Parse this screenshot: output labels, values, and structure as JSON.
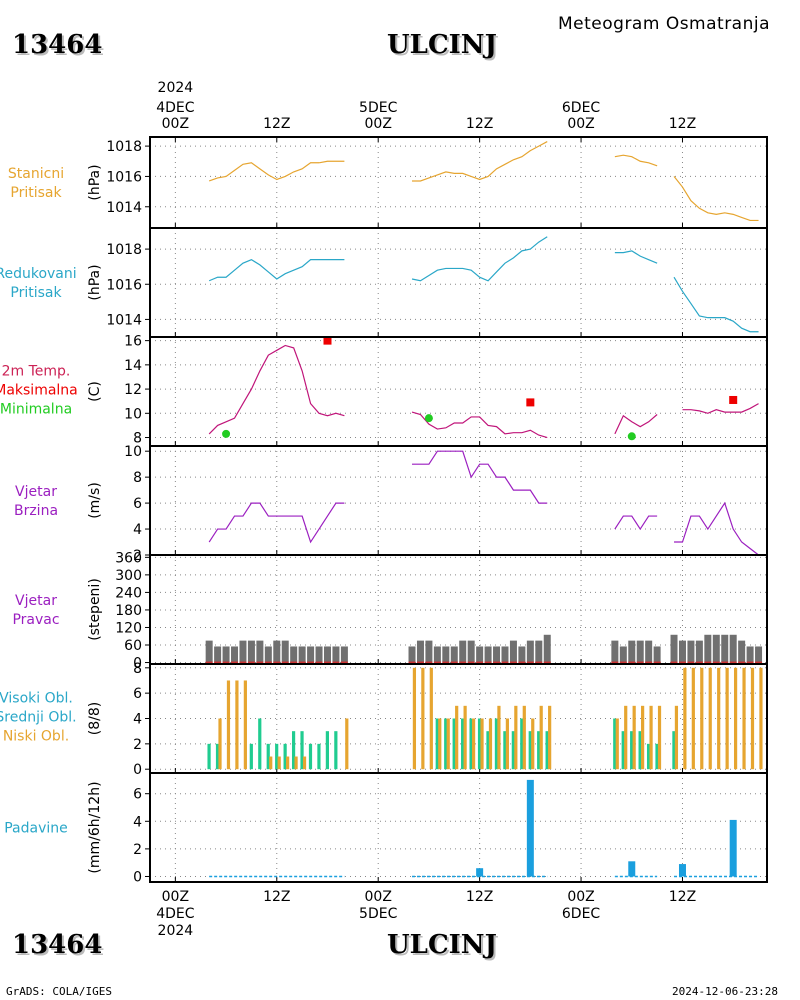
{
  "header": {
    "station_id": "13464",
    "station_name": "ULCINJ",
    "product": "Meteogram Osmatranja"
  },
  "footer": {
    "credit": "GrADS: COLA/IGES",
    "timestamp": "2024-12-06-23:28"
  },
  "time_axis": {
    "top_year": "2024",
    "ticks": [
      {
        "t": 0,
        "lines": [
          "4DEC",
          "00Z"
        ],
        "date": "4DEC"
      },
      {
        "t": 12,
        "lines": [
          "12Z"
        ]
      },
      {
        "t": 24,
        "lines": [
          "5DEC",
          "00Z"
        ],
        "date": "5DEC"
      },
      {
        "t": 36,
        "lines": [
          "12Z"
        ]
      },
      {
        "t": 48,
        "lines": [
          "6DEC",
          "00Z"
        ],
        "date": "6DEC"
      },
      {
        "t": 60,
        "lines": [
          "12Z"
        ]
      }
    ],
    "bottom": [
      {
        "t": 0,
        "lines": [
          "00Z",
          "4DEC",
          "2024"
        ]
      },
      {
        "t": 12,
        "lines": [
          "12Z"
        ]
      },
      {
        "t": 24,
        "lines": [
          "00Z",
          "5DEC"
        ]
      },
      {
        "t": 36,
        "lines": [
          "12Z"
        ]
      },
      {
        "t": 48,
        "lines": [
          "00Z",
          "6DEC"
        ]
      },
      {
        "t": 60,
        "lines": [
          "12Z"
        ]
      }
    ],
    "xlim": [
      -3,
      70
    ]
  },
  "chart_data": [
    {
      "id": "station_pressure",
      "type": "line",
      "panel_labels": [
        "Stanicni",
        "Pritisak"
      ],
      "label_color": "#e6a530",
      "ylabel": "(hPa)",
      "ylim": [
        1012.6,
        1018.6
      ],
      "yticks": [
        1014,
        1016,
        1018
      ],
      "series": [
        {
          "color": "#e6a530",
          "x": [
            4,
            5,
            6,
            7,
            8,
            9,
            10,
            11,
            12,
            13,
            14,
            15,
            16,
            17
          ],
          "y": [
            1015.7,
            1015.9,
            1016.0,
            1016.4,
            1016.8,
            1016.9,
            1016.5,
            1016.1,
            1015.8,
            1016.0,
            1016.3,
            1016.5,
            1016.9,
            1016.9
          ]
        },
        {
          "color": "#e6a530",
          "x": [
            17,
            18,
            19,
            20
          ],
          "y": [
            1016.9,
            1017.0,
            1017.0,
            1017.0
          ]
        },
        {
          "color": "#e6a530",
          "x": [
            28,
            29,
            30,
            31,
            32,
            33,
            34,
            35,
            36,
            37,
            38,
            39,
            40,
            41,
            42,
            43,
            44
          ],
          "y": [
            1015.7,
            1015.7,
            1015.9,
            1016.1,
            1016.3,
            1016.2,
            1016.2,
            1016.0,
            1015.8,
            1016.0,
            1016.5,
            1016.8,
            1017.1,
            1017.3,
            1017.7,
            1018.0,
            1018.3
          ]
        },
        {
          "color": "#e6a530",
          "x": [
            52,
            53,
            54,
            55,
            56,
            57
          ],
          "y": [
            1017.3,
            1017.4,
            1017.3,
            1017.0,
            1016.9,
            1016.7
          ]
        },
        {
          "color": "#e6a530",
          "x": [
            59,
            60,
            61,
            62,
            63,
            64,
            65,
            66,
            67,
            68,
            69
          ],
          "y": [
            1016.0,
            1015.3,
            1014.4,
            1013.9,
            1013.6,
            1013.5,
            1013.6,
            1013.5,
            1013.3,
            1013.1,
            1013.1
          ]
        }
      ]
    },
    {
      "id": "reduced_pressure",
      "type": "line",
      "panel_labels": [
        "Redukovani",
        "Pritisak"
      ],
      "label_color": "#2aa7c8",
      "ylabel": "(hPa)",
      "ylim": [
        1013.0,
        1019.2
      ],
      "yticks": [
        1014,
        1016,
        1018
      ],
      "series": [
        {
          "color": "#2aa7c8",
          "x": [
            4,
            5,
            6,
            7,
            8,
            9,
            10,
            11,
            12,
            13,
            14,
            15,
            16,
            17,
            18,
            19,
            20
          ],
          "y": [
            1016.2,
            1016.4,
            1016.4,
            1016.8,
            1017.2,
            1017.4,
            1017.1,
            1016.7,
            1016.3,
            1016.6,
            1016.8,
            1017.0,
            1017.4,
            1017.4,
            1017.4,
            1017.4,
            1017.4
          ]
        },
        {
          "color": "#2aa7c8",
          "x": [
            28,
            29,
            30,
            31,
            32,
            33,
            34,
            35,
            36,
            37,
            38,
            39,
            40,
            41,
            42,
            43,
            44
          ],
          "y": [
            1016.3,
            1016.2,
            1016.5,
            1016.8,
            1016.9,
            1016.9,
            1016.9,
            1016.8,
            1016.4,
            1016.2,
            1016.7,
            1017.2,
            1017.5,
            1017.9,
            1018.0,
            1018.4,
            1018.7
          ]
        },
        {
          "color": "#2aa7c8",
          "x": [
            52,
            53,
            54,
            55,
            56,
            57
          ],
          "y": [
            1017.8,
            1017.8,
            1017.9,
            1017.6,
            1017.4,
            1017.2
          ]
        },
        {
          "color": "#2aa7c8",
          "x": [
            59,
            60,
            61,
            62,
            63,
            64,
            65,
            66,
            67,
            68,
            69
          ],
          "y": [
            1016.4,
            1015.6,
            1014.9,
            1014.2,
            1014.1,
            1014.1,
            1014.1,
            1013.9,
            1013.5,
            1013.3,
            1013.3
          ]
        }
      ]
    },
    {
      "id": "temperature",
      "type": "line",
      "panel_labels": [
        "2m Temp.",
        "Maksimalna",
        "Minimalna"
      ],
      "panel_label_colors": [
        "#cc2255",
        "#ee0000",
        "#22cc22"
      ],
      "ylabel": "(C)",
      "ylim": [
        7.3,
        16.3
      ],
      "yticks": [
        8,
        10,
        12,
        14,
        16
      ],
      "series": [
        {
          "name": "2m Temp.",
          "color": "#c0157a",
          "x": [
            4,
            5,
            6,
            7,
            8,
            9,
            10,
            11,
            12,
            13,
            14,
            15,
            16,
            17,
            18,
            19,
            20
          ],
          "y": [
            8.3,
            9.0,
            9.3,
            9.6,
            10.8,
            12.0,
            13.5,
            14.8,
            15.2,
            15.6,
            15.4,
            13.5,
            10.8,
            10.0,
            9.8,
            10.0,
            9.8
          ]
        },
        {
          "name": "2m Temp.",
          "color": "#c0157a",
          "x": [
            28,
            29,
            30,
            31,
            32,
            33,
            34,
            35,
            36,
            37,
            38,
            39,
            40,
            41,
            42,
            43,
            44
          ],
          "y": [
            10.1,
            9.9,
            9.1,
            8.7,
            8.8,
            9.2,
            9.2,
            9.7,
            9.7,
            9.0,
            8.9,
            8.3,
            8.4,
            8.4,
            8.6,
            8.2,
            8.0
          ]
        },
        {
          "name": "2m Temp.",
          "color": "#c0157a",
          "x": [
            52,
            53,
            54,
            55,
            56,
            57
          ],
          "y": [
            8.3,
            9.8,
            9.3,
            8.9,
            9.3,
            9.9
          ]
        },
        {
          "name": "2m Temp.",
          "color": "#c0157a",
          "x": [
            60,
            61,
            62,
            63,
            64,
            65,
            66,
            67,
            68,
            69
          ],
          "y": [
            10.3,
            10.3,
            10.2,
            10.0,
            10.3,
            10.1,
            10.1,
            10.1,
            10.4,
            10.8
          ]
        }
      ],
      "max_points": {
        "color": "#ee0000",
        "x": [
          18,
          42,
          66
        ],
        "y": [
          16.0,
          10.9,
          11.1
        ]
      },
      "min_points": {
        "color": "#22cc22",
        "x": [
          6,
          30,
          54
        ],
        "y": [
          8.3,
          9.6,
          8.1
        ]
      }
    },
    {
      "id": "wind_speed",
      "type": "line",
      "panel_labels": [
        "Vjetar",
        "Brzina"
      ],
      "label_color": "#9b1fc0",
      "ylabel": "(m/s)",
      "ylim": [
        2,
        10.4
      ],
      "yticks": [
        2,
        4,
        6,
        8,
        10
      ],
      "series": [
        {
          "color": "#9b1fc0",
          "x": [
            4,
            5,
            6,
            7,
            8,
            9,
            10,
            11,
            12,
            13,
            14,
            15,
            16,
            17,
            18,
            19,
            20
          ],
          "y": [
            3,
            4,
            4,
            5,
            5,
            6,
            6,
            5,
            5,
            5,
            5,
            5,
            3,
            4,
            5,
            6,
            6
          ]
        },
        {
          "color": "#9b1fc0",
          "x": [
            28,
            29,
            30,
            31,
            32,
            33,
            34,
            35,
            36,
            37,
            38,
            39,
            40,
            41,
            42,
            43,
            44
          ],
          "y": [
            9,
            9,
            9,
            10,
            10,
            10,
            10,
            8,
            9,
            9,
            8,
            8,
            7,
            7,
            7,
            6,
            6
          ]
        },
        {
          "color": "#9b1fc0",
          "x": [
            52,
            53,
            54,
            55,
            56,
            57
          ],
          "y": [
            4,
            5,
            5,
            4,
            5,
            5
          ]
        },
        {
          "color": "#9b1fc0",
          "x": [
            59,
            60,
            61,
            62,
            63,
            64,
            65,
            66,
            67,
            68,
            69
          ],
          "y": [
            3,
            3,
            5,
            5,
            4,
            5,
            6,
            4,
            3,
            2.5,
            2
          ]
        }
      ]
    },
    {
      "id": "wind_direction",
      "type": "bar",
      "panel_labels": [
        "Vjetar",
        "Pravac"
      ],
      "label_color": "#9b1fc0",
      "ylabel": "(stepeni)",
      "ylim": [
        -5,
        368
      ],
      "yticks": [
        0,
        60,
        120,
        180,
        240,
        300,
        360
      ],
      "bar_color": "#707070",
      "baseline_color": "#cc3333",
      "x": [
        4,
        5,
        6,
        7,
        8,
        9,
        10,
        11,
        12,
        13,
        14,
        15,
        16,
        17,
        18,
        19,
        20,
        28,
        29,
        30,
        31,
        32,
        33,
        34,
        35,
        36,
        37,
        38,
        39,
        40,
        41,
        42,
        43,
        44,
        52,
        53,
        54,
        55,
        56,
        57,
        59,
        60,
        61,
        62,
        63,
        64,
        65,
        66,
        67,
        68,
        69
      ],
      "values": [
        75,
        55,
        55,
        55,
        75,
        75,
        75,
        55,
        75,
        75,
        55,
        55,
        55,
        55,
        55,
        55,
        55,
        55,
        75,
        75,
        55,
        55,
        55,
        75,
        75,
        55,
        55,
        55,
        55,
        75,
        55,
        75,
        75,
        95,
        75,
        55,
        75,
        75,
        75,
        55,
        95,
        75,
        75,
        75,
        95,
        95,
        95,
        95,
        75,
        55,
        55
      ]
    },
    {
      "id": "cloud_cover",
      "type": "bar",
      "panel_labels": [
        "Visoki Obl.",
        "Srednji Obl.",
        "Niski Obl."
      ],
      "panel_label_colors": [
        "#2aa7c8",
        "#2aa7c8",
        "#e6a530"
      ],
      "ylabel": "(8/8)",
      "ylim": [
        -0.3,
        8.3
      ],
      "yticks": [
        0,
        2,
        4,
        6,
        8
      ],
      "x": [
        4,
        5,
        6,
        7,
        8,
        9,
        10,
        11,
        12,
        13,
        14,
        15,
        16,
        17,
        18,
        19,
        20,
        28,
        29,
        30,
        31,
        32,
        33,
        34,
        35,
        36,
        37,
        38,
        39,
        40,
        41,
        42,
        43,
        44,
        52,
        53,
        54,
        55,
        56,
        57,
        59,
        60,
        61,
        62,
        63,
        64,
        65,
        66,
        67,
        68,
        69
      ],
      "series": [
        {
          "name": "Visoki Obl.",
          "color": "#2aa7c8",
          "values": [
            0,
            0,
            0,
            0,
            0,
            0,
            0,
            0,
            0,
            0,
            0,
            0,
            0,
            0,
            0,
            0,
            0,
            0,
            0,
            0,
            0,
            0,
            0,
            0,
            0,
            0,
            0,
            0,
            0,
            0,
            0,
            0,
            0,
            0,
            0,
            0,
            0,
            0,
            0,
            0,
            0,
            0,
            0,
            0,
            0,
            0,
            0,
            0,
            0,
            0,
            0
          ]
        },
        {
          "name": "Srednji Obl.",
          "color": "#20cc90",
          "values": [
            2,
            2,
            0,
            0,
            0,
            2,
            4,
            2,
            2,
            2,
            3,
            3,
            2,
            2,
            3,
            3,
            0,
            0,
            0,
            0,
            4,
            4,
            4,
            4,
            4,
            4,
            3,
            4,
            3,
            3,
            4,
            3,
            3,
            3,
            4,
            3,
            3,
            3,
            2,
            2,
            3,
            0,
            0,
            0,
            0,
            0,
            0,
            0,
            0,
            0,
            0
          ]
        },
        {
          "name": "Niski Obl.",
          "color": "#e6a530",
          "values": [
            0,
            4,
            7,
            7,
            7,
            0,
            0,
            1,
            1,
            1,
            1,
            1,
            0,
            0,
            0,
            0,
            4,
            8,
            8,
            8,
            4,
            4,
            5,
            5,
            4,
            4,
            4,
            5,
            4,
            5,
            5,
            4,
            5,
            5,
            4,
            5,
            5,
            5,
            5,
            5,
            5,
            8,
            8,
            8,
            8,
            8,
            8,
            8,
            8,
            8,
            8
          ]
        }
      ]
    },
    {
      "id": "precipitation",
      "type": "bar",
      "panel_labels": [
        "Padavine"
      ],
      "label_color": "#2aa7c8",
      "ylabel": "(mm/6h/12h)",
      "ylim": [
        -0.4,
        7.5
      ],
      "yticks": [
        0,
        2,
        4,
        6
      ],
      "bar_color": "#1a9fde",
      "x": [
        36,
        42,
        54,
        60,
        66
      ],
      "values": [
        0.6,
        7.0,
        1.1,
        0.9,
        4.1
      ],
      "trace_segments": [
        [
          4,
          20
        ],
        [
          28,
          44
        ],
        [
          52,
          57
        ],
        [
          59,
          69
        ]
      ]
    }
  ]
}
